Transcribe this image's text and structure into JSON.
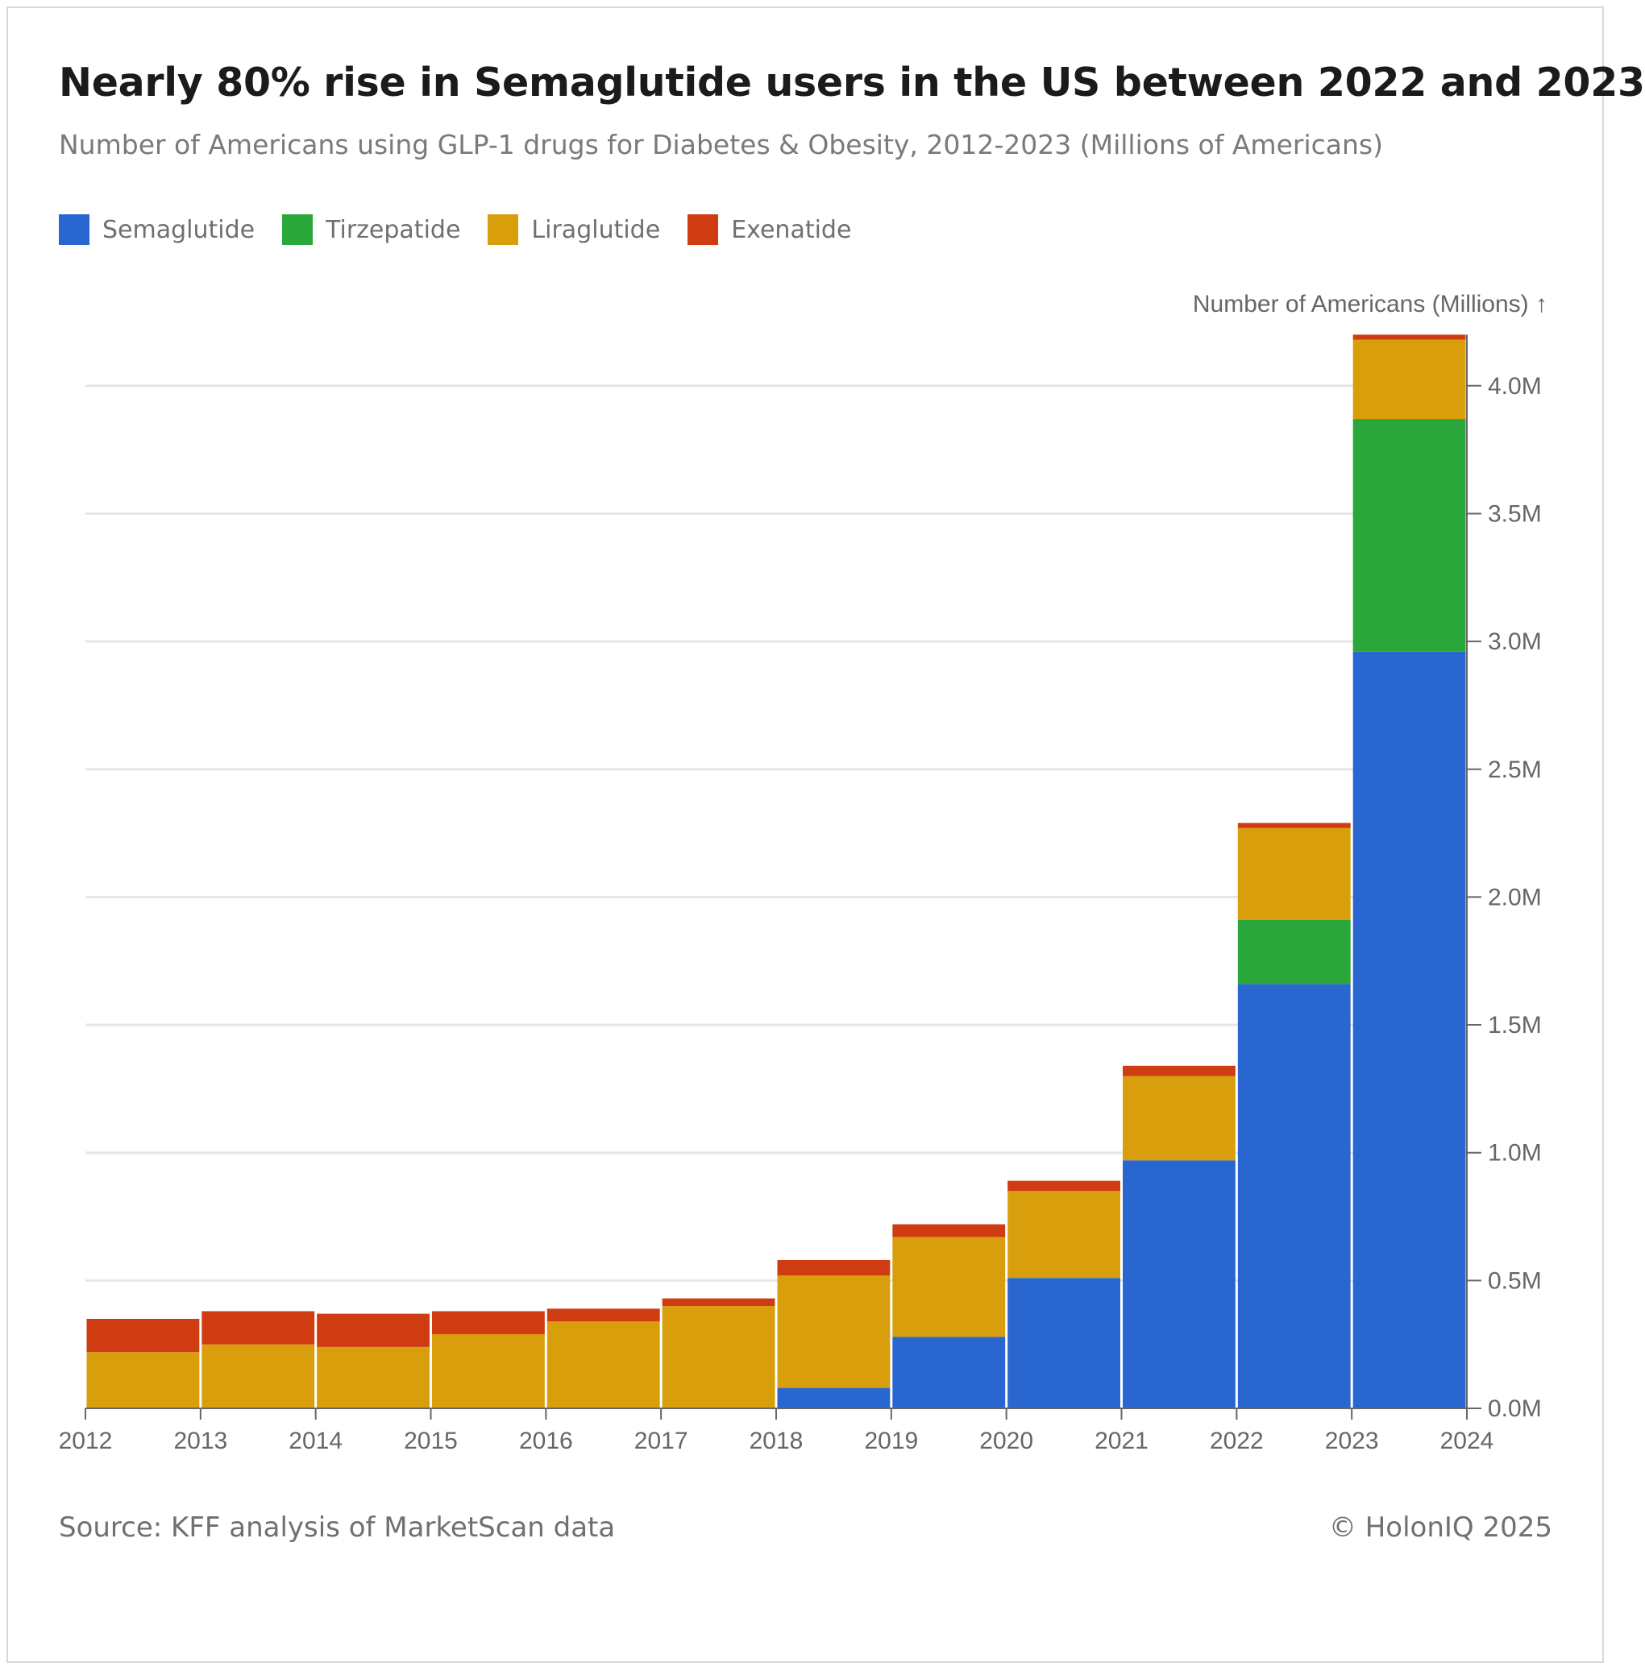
{
  "title": "Nearly 80% rise in Semaglutide users in the US between 2022 and 2023",
  "subtitle": "Number of Americans using GLP-1 drugs for Diabetes & Obesity, 2012-2023 (Millions of Americans)",
  "source": "Source: KFF analysis of MarketScan data",
  "copyright": "© HolonIQ 2025",
  "chart_data": {
    "type": "bar",
    "stacked": true,
    "x_ticks": [
      "2012",
      "2013",
      "2014",
      "2015",
      "2016",
      "2017",
      "2018",
      "2019",
      "2020",
      "2021",
      "2022",
      "2023",
      "2024"
    ],
    "categories": [
      "2012",
      "2013",
      "2014",
      "2015",
      "2016",
      "2017",
      "2018",
      "2019",
      "2020",
      "2021",
      "2022",
      "2023"
    ],
    "ylabel": "Number of Americans (Millions) ↑",
    "y_ticks": [
      "0.0M",
      "0.5M",
      "1.0M",
      "1.5M",
      "2.0M",
      "2.5M",
      "3.0M",
      "3.5M",
      "4.0M"
    ],
    "ylim": [
      0,
      4.2
    ],
    "grid": true,
    "legend_position": "top-left",
    "series": [
      {
        "name": "Semaglutide",
        "color": "#2966d0",
        "values": [
          0,
          0,
          0,
          0,
          0,
          0,
          0.08,
          0.28,
          0.51,
          0.97,
          1.66,
          2.96
        ]
      },
      {
        "name": "Tirzepatide",
        "color": "#2aa73b",
        "values": [
          0,
          0,
          0,
          0,
          0,
          0,
          0,
          0,
          0,
          0,
          0.25,
          0.91
        ]
      },
      {
        "name": "Liraglutide",
        "color": "#d99e0b",
        "values": [
          0.22,
          0.25,
          0.24,
          0.29,
          0.34,
          0.4,
          0.44,
          0.39,
          0.34,
          0.33,
          0.36,
          0.31
        ]
      },
      {
        "name": "Exenatide",
        "color": "#d03c12",
        "values": [
          0.13,
          0.13,
          0.13,
          0.09,
          0.05,
          0.03,
          0.06,
          0.05,
          0.04,
          0.04,
          0.02,
          0.02
        ]
      }
    ]
  }
}
